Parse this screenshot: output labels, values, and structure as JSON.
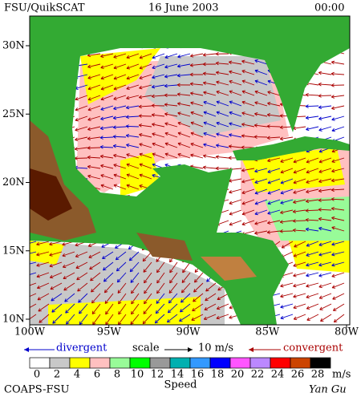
{
  "header": {
    "source": "FSU/QuikSCAT",
    "date": "16 June 2003",
    "time": "00:00"
  },
  "map": {
    "lat_labels": [
      "30N",
      "25N",
      "20N",
      "15N",
      "10N"
    ],
    "lon_labels": [
      "100W",
      "95W",
      "90W",
      "85W",
      "80W"
    ]
  },
  "legend": {
    "divergent": "divergent",
    "scale": "scale",
    "scale_value": "10 m/s",
    "convergent": "convergent"
  },
  "colorbar": {
    "labels": [
      0,
      2,
      4,
      6,
      8,
      10,
      12,
      14,
      16,
      18,
      20,
      22,
      24,
      26,
      28
    ],
    "unit": "m/s",
    "title": "Speed",
    "colors": [
      "#ffffff",
      "#c8c8c8",
      "#ffff00",
      "#ffc0c0",
      "#98fb98",
      "#00ff00",
      "#999999",
      "#00b0b0",
      "#3399ff",
      "#0000ff",
      "#ff55ff",
      "#bb88ff",
      "#ff0000",
      "#cc4400",
      "#000000"
    ]
  },
  "footer": {
    "left": "COAPS-FSU",
    "right": "Yan Gu"
  }
}
